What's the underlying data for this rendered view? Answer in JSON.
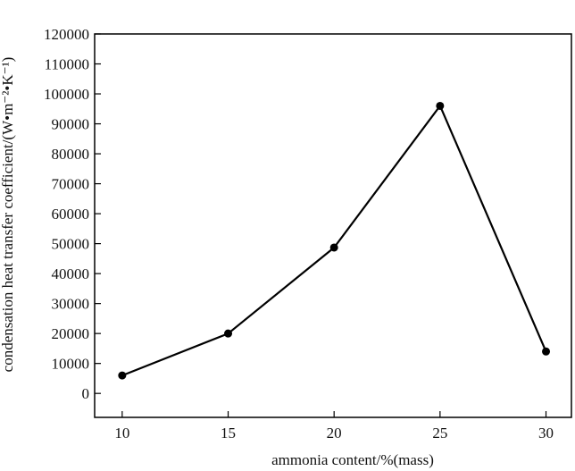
{
  "chart_data": {
    "type": "line",
    "title": "",
    "xlabel": "ammonia content/%(mass)",
    "ylabel": "condensation heat transfer coefficient/(W•m⁻²•K⁻¹)",
    "x": [
      10,
      15,
      20,
      25,
      30
    ],
    "x_tick_labels": [
      "10",
      "15",
      "20",
      "25",
      "30"
    ],
    "xlim": [
      8.7,
      31.2
    ],
    "y_ticks": [
      0,
      10000,
      20000,
      30000,
      40000,
      50000,
      60000,
      70000,
      80000,
      90000,
      100000,
      110000,
      120000
    ],
    "y_tick_labels": [
      "0",
      "10000",
      "20000",
      "30000",
      "40000",
      "50000",
      "60000",
      "70000",
      "80000",
      "90000",
      "100000",
      "110000",
      "120000"
    ],
    "ylim": [
      -8000,
      120000
    ],
    "series": [
      {
        "values": [
          6000,
          20000,
          48700,
          96000,
          14000
        ],
        "color": "#000000",
        "marker": "filled-circle"
      }
    ],
    "grid": false,
    "legend": "none"
  }
}
